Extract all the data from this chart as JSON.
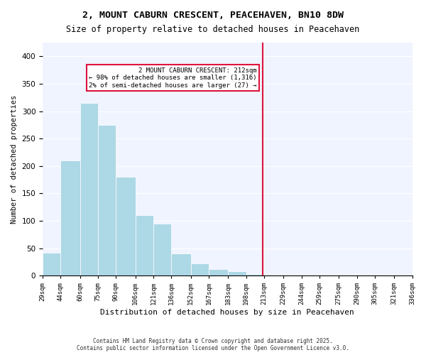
{
  "title": "2, MOUNT CABURN CRESCENT, PEACEHAVEN, BN10 8DW",
  "subtitle": "Size of property relative to detached houses in Peacehaven",
  "xlabel": "Distribution of detached houses by size in Peacehaven",
  "ylabel": "Number of detached properties",
  "bar_color": "#add8e6",
  "highlight_color": "#dc143c",
  "bins": [
    29,
    44,
    60,
    75,
    90,
    106,
    121,
    136,
    152,
    167,
    183,
    198,
    213,
    229,
    244,
    259,
    275,
    290,
    305,
    321,
    336
  ],
  "bin_labels": [
    "29sqm",
    "44sqm",
    "60sqm",
    "75sqm",
    "90sqm",
    "106sqm",
    "121sqm",
    "136sqm",
    "152sqm",
    "167sqm",
    "183sqm",
    "198sqm",
    "213sqm",
    "229sqm",
    "244sqm",
    "259sqm",
    "275sqm",
    "290sqm",
    "305sqm",
    "321sqm",
    "336sqm"
  ],
  "counts": [
    42,
    210,
    315,
    275,
    180,
    110,
    95,
    40,
    22,
    12,
    8,
    3,
    0,
    0,
    0,
    0,
    0,
    0,
    0,
    0
  ],
  "property_value": 212,
  "property_bin_index": 11,
  "annotation_title": "2 MOUNT CABURN CRESCENT: 212sqm",
  "annotation_line1": "← 98% of detached houses are smaller (1,316)",
  "annotation_line2": "2% of semi-detached houses are larger (27) →",
  "footer_line1": "Contains HM Land Registry data © Crown copyright and database right 2025.",
  "footer_line2": "Contains public sector information licensed under the Open Government Licence v3.0.",
  "ylim": [
    0,
    425
  ],
  "yticks": [
    0,
    50,
    100,
    150,
    200,
    250,
    300,
    350,
    400
  ]
}
